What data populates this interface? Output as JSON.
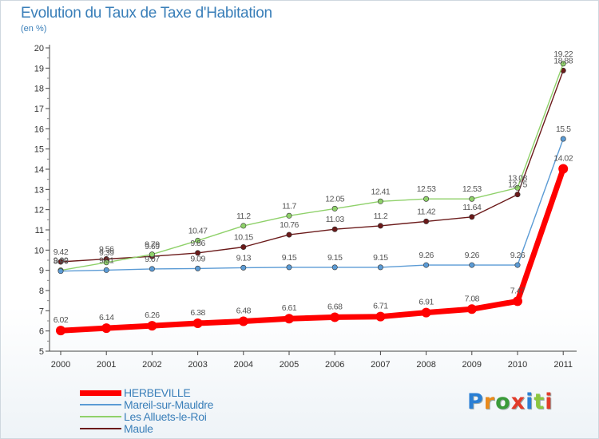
{
  "title": "Evolution du Taux de Taxe d'Habitation",
  "subtitle": "(en %)",
  "logo": {
    "text": "Proxiti",
    "colors": [
      "#2a7fd4",
      "#e98a1b",
      "#3a9b3a",
      "#e23b2a",
      "#2a7fd4",
      "#8cc63f",
      "#e23b2a"
    ]
  },
  "chart_data": {
    "type": "line",
    "x": [
      "2000",
      "2001",
      "2002",
      "2003",
      "2004",
      "2005",
      "2006",
      "2007",
      "2008",
      "2009",
      "2010",
      "2011"
    ],
    "ylim": [
      5,
      20
    ],
    "yticks": [
      5,
      6,
      7,
      8,
      9,
      10,
      11,
      12,
      13,
      14,
      15,
      16,
      17,
      18,
      19,
      20
    ],
    "grid": false,
    "legend_position": "bottom-left",
    "series": [
      {
        "name": "HERBEVILLE",
        "color": "#ff0000",
        "values": [
          6.02,
          6.14,
          6.26,
          6.38,
          6.48,
          6.61,
          6.68,
          6.71,
          6.91,
          7.08,
          7.47,
          14.02
        ],
        "labels": [
          "6.02",
          "6.14",
          "6.26",
          "6.38",
          "6.48",
          "6.61",
          "6.68",
          "6.71",
          "6.91",
          "7.08",
          "7.47",
          "14.02"
        ]
      },
      {
        "name": "Mareil-sur-Mauldre",
        "color": "#5b9bd5",
        "values": [
          8.96,
          9.01,
          9.07,
          9.09,
          9.13,
          9.15,
          9.15,
          9.15,
          9.26,
          9.26,
          9.26,
          15.5
        ],
        "labels": [
          "8.96",
          "9.01",
          "9.07",
          "9.09",
          "9.13",
          "9.15",
          "9.15",
          "9.15",
          "9.26",
          "9.26",
          "9.26",
          "15.5"
        ]
      },
      {
        "name": "Les Alluets-le-Roi",
        "color": "#8fd16a",
        "values": [
          9.0,
          9.39,
          9.79,
          10.47,
          11.2,
          11.7,
          12.05,
          12.41,
          12.53,
          12.53,
          13.08,
          19.22
        ],
        "labels": [
          "9.00",
          "9.39",
          "9.79",
          "10.47",
          "11.2",
          "11.7",
          "12.05",
          "12.41",
          "12.53",
          "12.53",
          "13.08",
          "19.22"
        ]
      },
      {
        "name": "Maule",
        "color": "#6b1a1a",
        "values": [
          9.42,
          9.56,
          9.69,
          9.86,
          10.15,
          10.76,
          11.03,
          11.2,
          11.42,
          11.64,
          12.75,
          18.88
        ],
        "labels": [
          "9.42",
          "9.56",
          "9.69",
          "9.86",
          "10.15",
          "10.76",
          "11.03",
          "11.2",
          "11.42",
          "11.64",
          "12.75",
          "18.88"
        ]
      }
    ]
  }
}
